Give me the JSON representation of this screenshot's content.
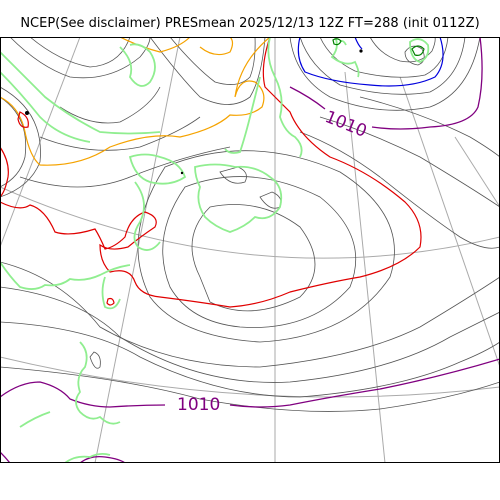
{
  "figure": {
    "title": "NCEP(See disclaimer) PRESmean 2025/12/13 12Z FT=288 (init 0112Z)"
  },
  "map": {
    "contour_labels": [
      "1010",
      "1010"
    ],
    "colors": {
      "isobar_thin": "#555555",
      "isobar_1010": "#800080",
      "isobar_red": "#e00000",
      "isobar_blue": "#0000dd",
      "coast_green": "#90ee90",
      "orange": "#f5a300",
      "graticule": "#aaaaaa",
      "frame": "#000000"
    }
  }
}
